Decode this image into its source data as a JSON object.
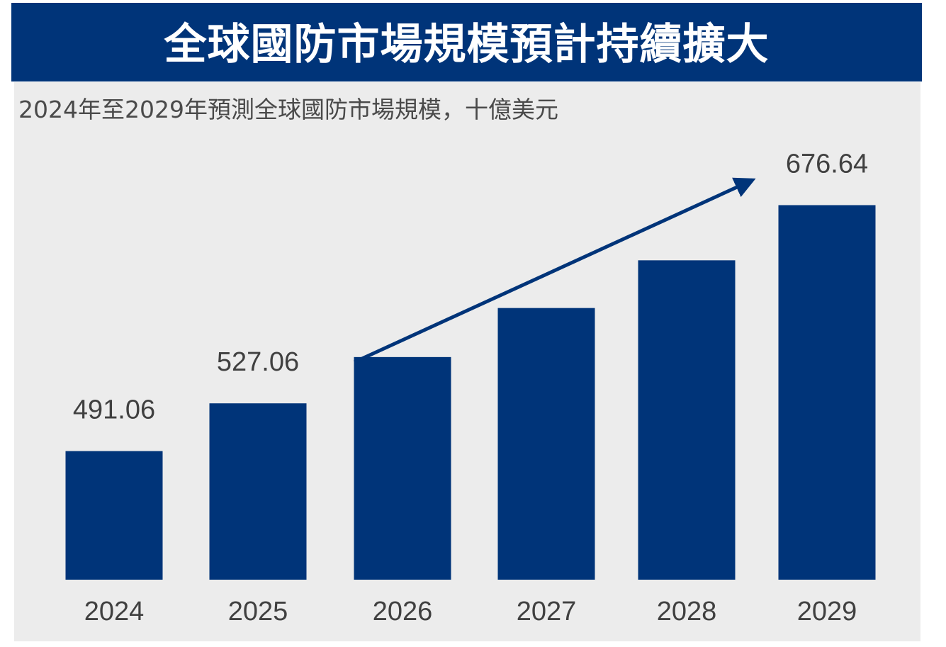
{
  "chart_data": {
    "type": "bar",
    "title": "全球國防市場規模預計持續擴大",
    "subtitle": "2024年至2029年預測全球國防市場規模，十億美元",
    "categories": [
      "2024",
      "2025",
      "2026",
      "2027",
      "2028",
      "2029"
    ],
    "values": [
      491.06,
      527.06,
      562,
      599,
      635,
      676.64
    ],
    "data_labels": [
      "491.06",
      "527.06",
      "",
      "",
      "",
      "676.64"
    ],
    "ylim": [
      394,
      717
    ],
    "grid": false,
    "legend": "none",
    "trend_arrow": true,
    "colors": {
      "bar": "#003479",
      "banner": "#003479",
      "panel": "#ececec",
      "text": "#404040"
    }
  }
}
